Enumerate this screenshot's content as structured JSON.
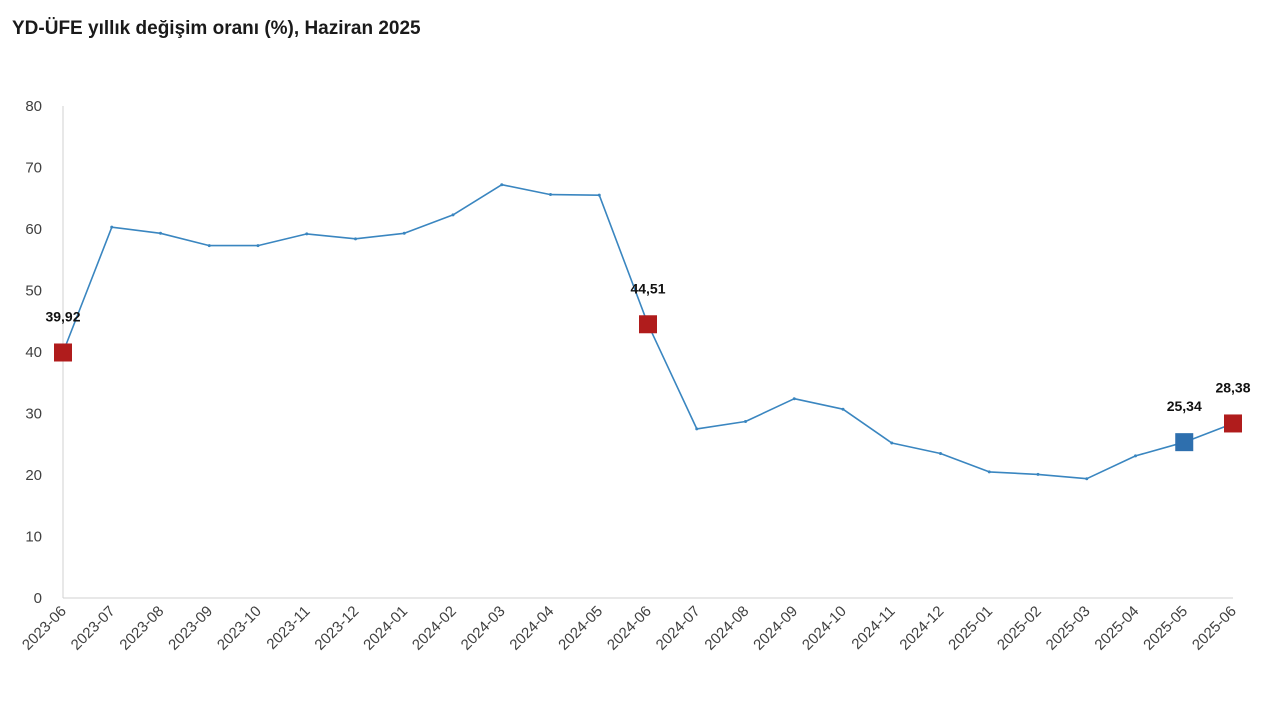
{
  "title": "YD-ÜFE yıllık değişim oranı (%), Haziran 2025",
  "chart_data": {
    "type": "line",
    "title": "YD-ÜFE yıllık değişim oranı (%), Haziran 2025",
    "xlabel": "",
    "ylabel": "",
    "ylim": [
      0,
      80
    ],
    "yticks": [
      0,
      10,
      20,
      30,
      40,
      50,
      60,
      70,
      80
    ],
    "grid": false,
    "legend": "none",
    "categories": [
      "2023-06",
      "2023-07",
      "2023-08",
      "2023-09",
      "2023-10",
      "2023-11",
      "2023-12",
      "2024-01",
      "2024-02",
      "2024-03",
      "2024-04",
      "2024-05",
      "2024-06",
      "2024-07",
      "2024-08",
      "2024-09",
      "2024-10",
      "2024-11",
      "2024-12",
      "2025-01",
      "2025-02",
      "2025-03",
      "2025-04",
      "2025-05",
      "2025-06"
    ],
    "series": [
      {
        "values": [
          39.92,
          60.3,
          59.3,
          57.3,
          57.3,
          59.2,
          58.4,
          59.3,
          62.3,
          67.2,
          65.6,
          65.5,
          44.51,
          27.5,
          28.7,
          32.4,
          30.7,
          25.2,
          23.5,
          20.5,
          20.1,
          19.4,
          23.1,
          25.34,
          28.38
        ],
        "color": "#3a86c0"
      }
    ],
    "highlights": [
      {
        "category": "2023-06",
        "label": "39,92",
        "color": "#b01c1c"
      },
      {
        "category": "2024-06",
        "label": "44,51",
        "color": "#b01c1c"
      },
      {
        "category": "2025-05",
        "label": "25,34",
        "color": "#2e6fae"
      },
      {
        "category": "2025-06",
        "label": "28,38",
        "color": "#b01c1c"
      }
    ],
    "axis_color": "#d0d0d0"
  }
}
